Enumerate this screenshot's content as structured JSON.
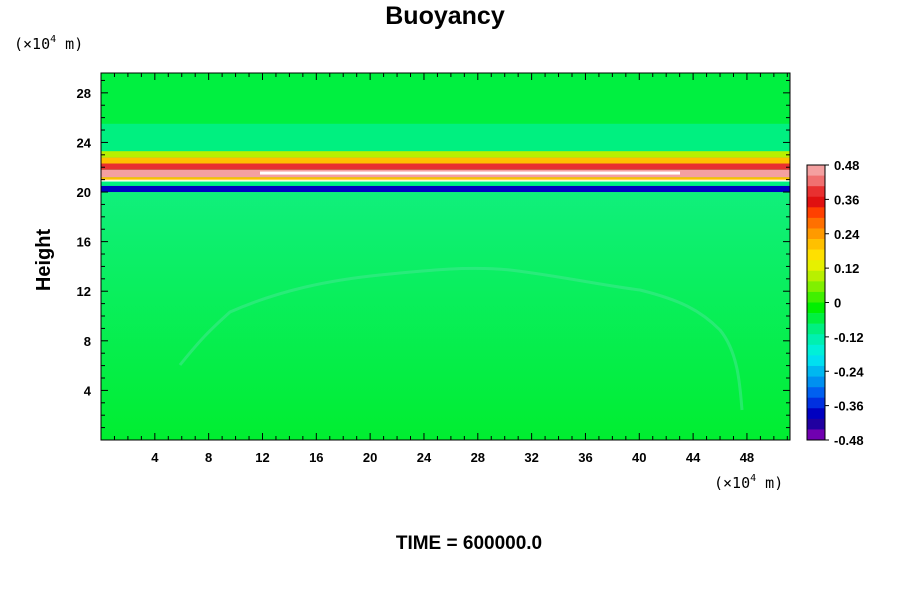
{
  "chart_data": {
    "type": "heatmap",
    "title": "Buoyancy",
    "ylabel": "Height",
    "xlabel": "",
    "x_unit_prefix": "(×10",
    "x_unit_exp": "4",
    "x_unit_suffix": " m)",
    "y_unit_prefix": "(×10",
    "y_unit_exp": "4",
    "y_unit_suffix": " m)",
    "xlim": [
      0,
      51.2
    ],
    "ylim": [
      0,
      29.6
    ],
    "x_ticks": [
      "4",
      "8",
      "12",
      "16",
      "20",
      "24",
      "28",
      "32",
      "36",
      "40",
      "44",
      "48"
    ],
    "y_ticks": [
      "4",
      "8",
      "12",
      "16",
      "20",
      "24",
      "28"
    ],
    "colorbar": {
      "range": [
        -0.48,
        0.48
      ],
      "labels": [
        "0.48",
        "0.36",
        "0.24",
        "0.12",
        "0",
        "-0.12",
        "-0.24",
        "-0.36",
        "-0.48"
      ],
      "colors_top_to_bottom": [
        "#f4a0a0",
        "#f07070",
        "#e83030",
        "#e01010",
        "#ff4000",
        "#ff7000",
        "#ff9a00",
        "#ffc000",
        "#ffe000",
        "#e6f000",
        "#b8f000",
        "#80f000",
        "#40f000",
        "#00f000",
        "#00f040",
        "#00f080",
        "#00f0b0",
        "#00f0d8",
        "#00e0f0",
        "#00b8f0",
        "#0090f0",
        "#0060f0",
        "#0030e0",
        "#0000c0",
        "#2000a0",
        "#7000b0"
      ]
    },
    "field": {
      "background_value": 0,
      "layers": [
        {
          "y_from": 0,
          "y_to": 20.2,
          "value": 0.0
        },
        {
          "y_from": 20.0,
          "y_to": 20.5,
          "value": -0.4
        },
        {
          "y_from": 20.5,
          "y_to": 20.9,
          "value": -0.1
        },
        {
          "y_from": 20.9,
          "y_to": 21.2,
          "value": 0.2
        },
        {
          "y_from": 21.2,
          "y_to": 21.8,
          "value": 0.48
        },
        {
          "y_from": 21.8,
          "y_to": 22.3,
          "value": 0.4
        },
        {
          "y_from": 22.3,
          "y_to": 22.8,
          "value": 0.22
        },
        {
          "y_from": 22.8,
          "y_to": 23.3,
          "value": 0.1
        },
        {
          "y_from": 23.3,
          "y_to": 25.5,
          "value": -0.08
        },
        {
          "y_from": 25.5,
          "y_to": 29.6,
          "value": -0.04
        }
      ]
    },
    "annotation": "TIME = 600000.0"
  }
}
